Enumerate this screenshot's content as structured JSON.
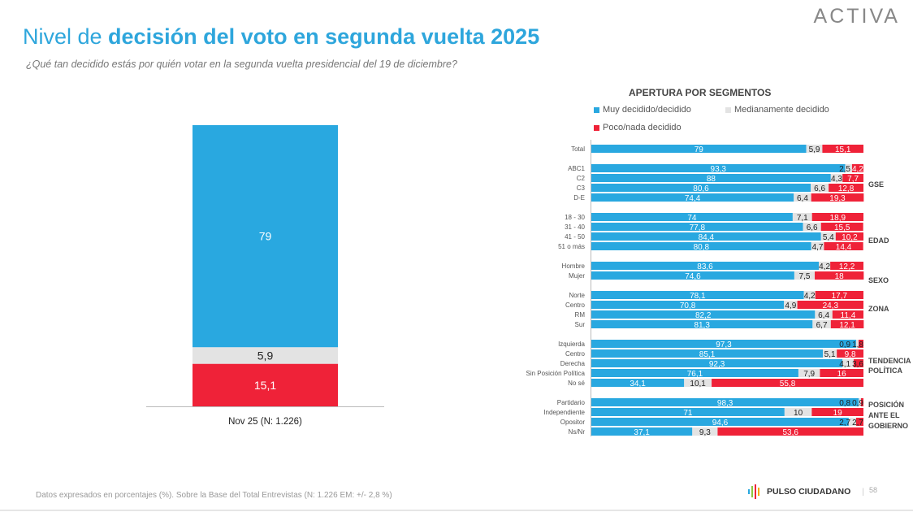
{
  "header": {
    "title_plain": "Nivel de ",
    "title_bold": "decisión del voto en segunda vuelta 2025",
    "subtitle": "¿Qué tan decidido estás por quién votar en la segunda vuelta presidencial del 19 de diciembre?",
    "logo": "ACTIVA"
  },
  "colors": {
    "decided": "#29a8e0",
    "medium": "#e3e3e3",
    "low": "#ef2238"
  },
  "chart_data": [
    {
      "type": "bar",
      "stacked": true,
      "orientation": "vertical",
      "categories": [
        "Nov 25 (N: 1.226)"
      ],
      "series": [
        {
          "name": "Muy decidido/decidido",
          "values": [
            79
          ]
        },
        {
          "name": "Medianamente decidido",
          "values": [
            5.9
          ]
        },
        {
          "name": "Poco/nada decidido",
          "values": [
            15.1
          ]
        }
      ],
      "ylim": [
        0,
        100
      ]
    },
    {
      "type": "bar",
      "stacked": true,
      "orientation": "horizontal",
      "title": "APERTURA POR SEGMENTOS",
      "legend": [
        "Muy decidido/decidido",
        "Medianamente decidido",
        "Poco/nada decidido"
      ],
      "legend_position": "top",
      "groups": [
        {
          "label": "",
          "rows": [
            {
              "label": "Total",
              "values": [
                79,
                5.9,
                15.1
              ]
            }
          ]
        },
        {
          "label": "GSE",
          "rows": [
            {
              "label": "ABC1",
              "values": [
                93.3,
                2.5,
                4.2
              ]
            },
            {
              "label": "C2",
              "values": [
                88,
                4.3,
                7.7
              ]
            },
            {
              "label": "C3",
              "values": [
                80.6,
                6.6,
                12.8
              ]
            },
            {
              "label": "D-E",
              "values": [
                74.4,
                6.4,
                19.3
              ]
            }
          ]
        },
        {
          "label": "EDAD",
          "rows": [
            {
              "label": "18 - 30",
              "values": [
                74,
                7.1,
                18.9
              ]
            },
            {
              "label": "31 - 40",
              "values": [
                77.8,
                6.6,
                15.5
              ]
            },
            {
              "label": "41 - 50",
              "values": [
                84.4,
                5.4,
                10.2
              ]
            },
            {
              "label": "51 o más",
              "values": [
                80.8,
                4.7,
                14.4
              ]
            }
          ]
        },
        {
          "label": "SEXO",
          "rows": [
            {
              "label": "Hombre",
              "values": [
                83.6,
                4.2,
                12.2
              ]
            },
            {
              "label": "Mujer",
              "values": [
                74.6,
                7.5,
                18
              ]
            }
          ]
        },
        {
          "label": "ZONA",
          "rows": [
            {
              "label": "Norte",
              "values": [
                78.1,
                4.2,
                17.7
              ]
            },
            {
              "label": "Centro",
              "values": [
                70.8,
                4.9,
                24.3
              ]
            },
            {
              "label": "RM",
              "values": [
                82.2,
                6.4,
                11.4
              ]
            },
            {
              "label": "Sur",
              "values": [
                81.3,
                6.7,
                12.1
              ]
            }
          ]
        },
        {
          "label": "TENDENCIA POLÍTICA",
          "rows": [
            {
              "label": "Izquierda",
              "values": [
                97.3,
                0.9,
                1.8
              ]
            },
            {
              "label": "Centro",
              "values": [
                85.1,
                5.1,
                9.8
              ]
            },
            {
              "label": "Derecha",
              "values": [
                92.3,
                4.1,
                3.6
              ]
            },
            {
              "label": "Sin Posición Política",
              "values": [
                76.1,
                7.9,
                16
              ]
            },
            {
              "label": "No sé",
              "values": [
                34.1,
                10.1,
                55.8
              ]
            }
          ]
        },
        {
          "label": "POSICIÓN ANTE EL GOBIERNO",
          "rows": [
            {
              "label": "Partidario",
              "values": [
                98.3,
                0.8,
                0.9
              ]
            },
            {
              "label": "Independiente",
              "values": [
                71,
                10,
                19
              ]
            },
            {
              "label": "Opositor",
              "values": [
                94.6,
                2.7,
                2.7
              ]
            },
            {
              "label": "Ns/Nr",
              "values": [
                37.1,
                9.3,
                53.6
              ]
            }
          ]
        }
      ],
      "xlim": [
        0,
        100
      ]
    }
  ],
  "footer": {
    "note": "Datos expresados en porcentajes (%). Sobre la Base del Total Entrevistas (N: 1.226  EM: +/- 2,8 %)",
    "brand": "PULSO CIUDADANO",
    "page": "58"
  }
}
